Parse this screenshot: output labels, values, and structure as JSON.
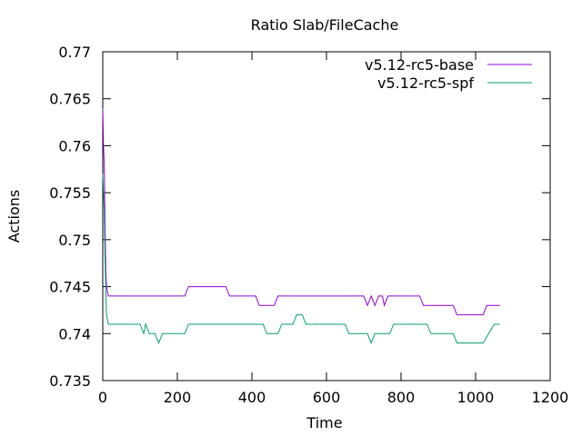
{
  "chart_data": {
    "type": "line",
    "title": "Ratio Slab/FileCache",
    "xlabel": "Time",
    "ylabel": "Actions",
    "xlim": [
      0,
      1200
    ],
    "ylim": [
      0.735,
      0.77
    ],
    "x_ticks": [
      0,
      200,
      400,
      600,
      800,
      1000,
      1200
    ],
    "y_ticks": [
      0.735,
      0.74,
      0.745,
      0.75,
      0.755,
      0.76,
      0.765,
      0.77
    ],
    "x_tick_labels": [
      "0",
      "200",
      "400",
      "600",
      "800",
      "1000",
      "1200"
    ],
    "y_tick_labels": [
      "0.735",
      "0.74",
      "0.745",
      "0.75",
      "0.755",
      "0.76",
      "0.765",
      "0.77"
    ],
    "grid": false,
    "legend_position": "top-right",
    "series": [
      {
        "name": "v5.12-rc5-base",
        "color": "#9400d3",
        "points": [
          [
            0,
            0.764
          ],
          [
            2,
            0.76
          ],
          [
            4,
            0.758
          ],
          [
            6,
            0.752
          ],
          [
            8,
            0.747
          ],
          [
            10,
            0.745
          ],
          [
            15,
            0.744
          ],
          [
            100,
            0.744
          ],
          [
            220,
            0.744
          ],
          [
            230,
            0.745
          ],
          [
            330,
            0.745
          ],
          [
            340,
            0.744
          ],
          [
            410,
            0.744
          ],
          [
            420,
            0.743
          ],
          [
            460,
            0.743
          ],
          [
            470,
            0.744
          ],
          [
            700,
            0.744
          ],
          [
            710,
            0.743
          ],
          [
            720,
            0.744
          ],
          [
            730,
            0.743
          ],
          [
            740,
            0.744
          ],
          [
            750,
            0.744
          ],
          [
            755,
            0.743
          ],
          [
            765,
            0.744
          ],
          [
            850,
            0.744
          ],
          [
            860,
            0.743
          ],
          [
            940,
            0.743
          ],
          [
            950,
            0.742
          ],
          [
            1020,
            0.742
          ],
          [
            1030,
            0.743
          ],
          [
            1065,
            0.743
          ]
        ]
      },
      {
        "name": "v5.12-rc5-spf",
        "color": "#009e73",
        "points": [
          [
            0,
            0.757
          ],
          [
            2,
            0.755
          ],
          [
            4,
            0.753
          ],
          [
            6,
            0.748
          ],
          [
            8,
            0.745
          ],
          [
            10,
            0.742
          ],
          [
            15,
            0.741
          ],
          [
            100,
            0.741
          ],
          [
            110,
            0.74
          ],
          [
            115,
            0.741
          ],
          [
            125,
            0.74
          ],
          [
            140,
            0.74
          ],
          [
            150,
            0.739
          ],
          [
            160,
            0.74
          ],
          [
            220,
            0.74
          ],
          [
            230,
            0.741
          ],
          [
            430,
            0.741
          ],
          [
            440,
            0.74
          ],
          [
            470,
            0.74
          ],
          [
            480,
            0.741
          ],
          [
            510,
            0.741
          ],
          [
            520,
            0.742
          ],
          [
            535,
            0.742
          ],
          [
            545,
            0.741
          ],
          [
            650,
            0.741
          ],
          [
            660,
            0.74
          ],
          [
            710,
            0.74
          ],
          [
            720,
            0.739
          ],
          [
            730,
            0.74
          ],
          [
            770,
            0.74
          ],
          [
            780,
            0.741
          ],
          [
            870,
            0.741
          ],
          [
            880,
            0.74
          ],
          [
            940,
            0.74
          ],
          [
            950,
            0.739
          ],
          [
            1020,
            0.739
          ],
          [
            1035,
            0.74
          ],
          [
            1050,
            0.741
          ],
          [
            1065,
            0.741
          ]
        ]
      }
    ]
  }
}
